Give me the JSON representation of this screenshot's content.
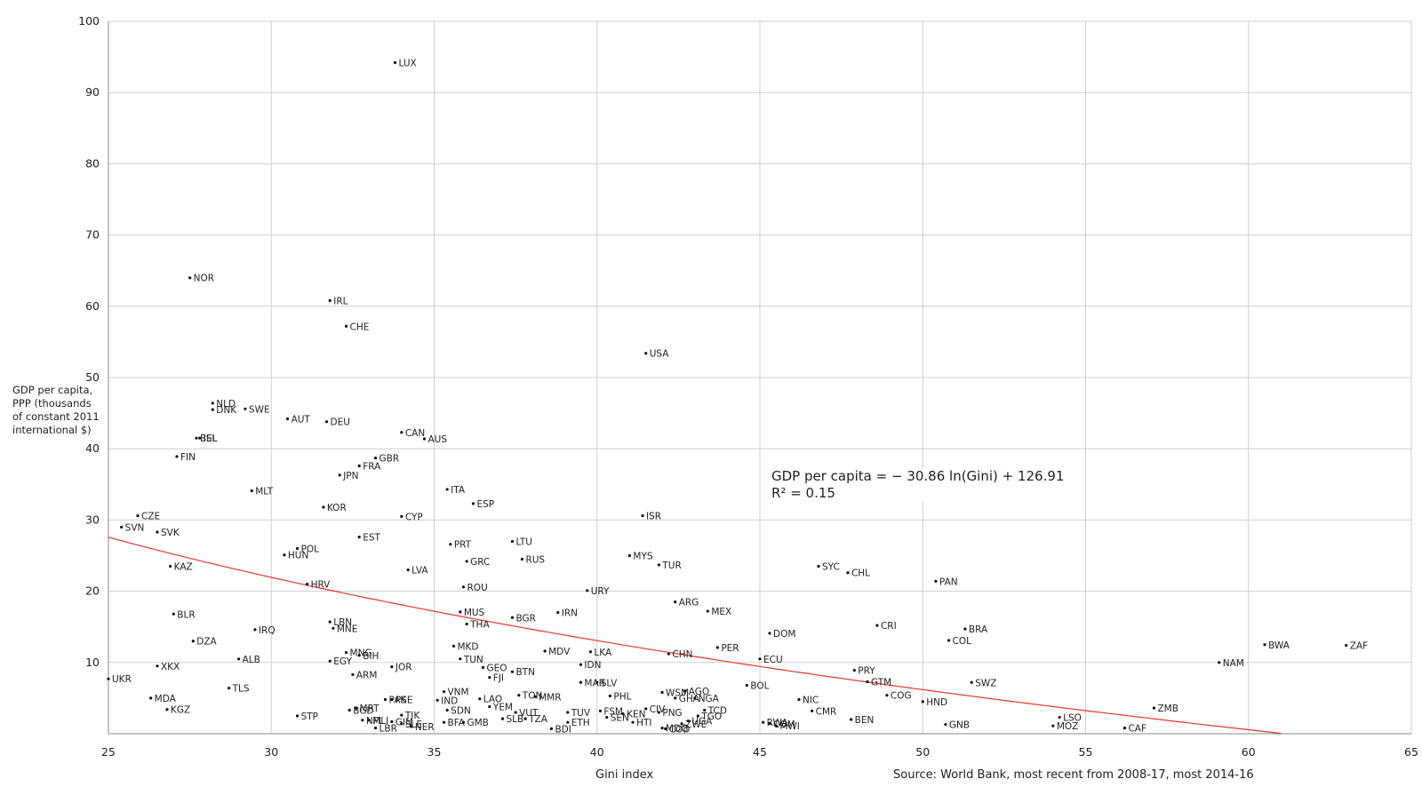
{
  "chart_data": {
    "type": "scatter",
    "xlabel": "Gini index",
    "ylabel": "GDP per capita,\nPPP (thousands\nof constant 2011\ninternational $)",
    "source": "Source: World Bank, most recent from 2008-17, most 2014-16",
    "equation": "GDP per capita = − 30.86 ln(Gini) + 126.91",
    "r2": "R² = 0.15",
    "xlim": [
      25,
      65
    ],
    "ylim": [
      0,
      100
    ],
    "xticks": [
      25,
      30,
      35,
      40,
      45,
      50,
      55,
      60,
      65
    ],
    "yticks": [
      10,
      20,
      30,
      40,
      50,
      60,
      70,
      80,
      90,
      100
    ],
    "grid": true,
    "trend_color": "#e8352e",
    "trend": {
      "a": -30.86,
      "b": 126.91
    },
    "points": [
      {
        "label": "LUX",
        "x": 33.8,
        "y": 94.2
      },
      {
        "label": "NOR",
        "x": 27.5,
        "y": 64.0
      },
      {
        "label": "IRL",
        "x": 31.8,
        "y": 60.8
      },
      {
        "label": "CHE",
        "x": 32.3,
        "y": 57.2
      },
      {
        "label": "USA",
        "x": 41.5,
        "y": 53.4
      },
      {
        "label": "NLD",
        "x": 28.2,
        "y": 46.4
      },
      {
        "label": "DNK",
        "x": 28.2,
        "y": 45.5
      },
      {
        "label": "SWE",
        "x": 29.2,
        "y": 45.6
      },
      {
        "label": "AUT",
        "x": 30.5,
        "y": 44.2
      },
      {
        "label": "DEU",
        "x": 31.7,
        "y": 43.8
      },
      {
        "label": "CAN",
        "x": 34.0,
        "y": 42.3
      },
      {
        "label": "AUS",
        "x": 34.7,
        "y": 41.4
      },
      {
        "label": "BEL",
        "x": 27.7,
        "y": 41.5
      },
      {
        "label": "ISL",
        "x": 27.8,
        "y": 41.5
      },
      {
        "label": "FIN",
        "x": 27.1,
        "y": 38.9
      },
      {
        "label": "GBR",
        "x": 33.2,
        "y": 38.7
      },
      {
        "label": "FRA",
        "x": 32.7,
        "y": 37.6
      },
      {
        "label": "JPN",
        "x": 32.1,
        "y": 36.3
      },
      {
        "label": "MLT",
        "x": 29.4,
        "y": 34.1
      },
      {
        "label": "ITA",
        "x": 35.4,
        "y": 34.3
      },
      {
        "label": "ESP",
        "x": 36.2,
        "y": 32.3
      },
      {
        "label": "KOR",
        "x": 31.6,
        "y": 31.8
      },
      {
        "label": "CZE",
        "x": 25.9,
        "y": 30.6
      },
      {
        "label": "CYP",
        "x": 34.0,
        "y": 30.5
      },
      {
        "label": "ISR",
        "x": 41.4,
        "y": 30.6
      },
      {
        "label": "SVN",
        "x": 25.4,
        "y": 29.0
      },
      {
        "label": "SVK",
        "x": 26.5,
        "y": 28.3
      },
      {
        "label": "EST",
        "x": 32.7,
        "y": 27.6
      },
      {
        "label": "LTU",
        "x": 37.4,
        "y": 27.0
      },
      {
        "label": "PRT",
        "x": 35.5,
        "y": 26.6
      },
      {
        "label": "POL",
        "x": 30.8,
        "y": 26.0
      },
      {
        "label": "HUN",
        "x": 30.4,
        "y": 25.1
      },
      {
        "label": "MYS",
        "x": 41.0,
        "y": 25.0
      },
      {
        "label": "RUS",
        "x": 37.7,
        "y": 24.5
      },
      {
        "label": "GRC",
        "x": 36.0,
        "y": 24.2
      },
      {
        "label": "TUR",
        "x": 41.9,
        "y": 23.7
      },
      {
        "label": "SYC",
        "x": 46.8,
        "y": 23.5
      },
      {
        "label": "KAZ",
        "x": 26.9,
        "y": 23.5
      },
      {
        "label": "LVA",
        "x": 34.2,
        "y": 23.0
      },
      {
        "label": "CHL",
        "x": 47.7,
        "y": 22.6
      },
      {
        "label": "PAN",
        "x": 50.4,
        "y": 21.4
      },
      {
        "label": "HRV",
        "x": 31.1,
        "y": 21.0
      },
      {
        "label": "ROU",
        "x": 35.9,
        "y": 20.6
      },
      {
        "label": "URY",
        "x": 39.7,
        "y": 20.1
      },
      {
        "label": "ARG",
        "x": 42.4,
        "y": 18.5
      },
      {
        "label": "MEX",
        "x": 43.4,
        "y": 17.2
      },
      {
        "label": "IRN",
        "x": 38.8,
        "y": 17.0
      },
      {
        "label": "MUS",
        "x": 35.8,
        "y": 17.1
      },
      {
        "label": "BLR",
        "x": 27.0,
        "y": 16.8
      },
      {
        "label": "BGR",
        "x": 37.4,
        "y": 16.3
      },
      {
        "label": "LBN",
        "x": 31.8,
        "y": 15.7
      },
      {
        "label": "THA",
        "x": 36.0,
        "y": 15.4
      },
      {
        "label": "CRI",
        "x": 48.6,
        "y": 15.2
      },
      {
        "label": "MNE",
        "x": 31.9,
        "y": 14.8
      },
      {
        "label": "BRA",
        "x": 51.3,
        "y": 14.7
      },
      {
        "label": "IRQ",
        "x": 29.5,
        "y": 14.6
      },
      {
        "label": "DOM",
        "x": 45.3,
        "y": 14.1
      },
      {
        "label": "DZA",
        "x": 27.6,
        "y": 13.0
      },
      {
        "label": "COL",
        "x": 50.8,
        "y": 13.1
      },
      {
        "label": "BWA",
        "x": 60.5,
        "y": 12.5
      },
      {
        "label": "ZAF",
        "x": 63.0,
        "y": 12.4
      },
      {
        "label": "MKD",
        "x": 35.6,
        "y": 12.3
      },
      {
        "label": "PER",
        "x": 43.7,
        "y": 12.1
      },
      {
        "label": "MDV",
        "x": 38.4,
        "y": 11.6
      },
      {
        "label": "LKA",
        "x": 39.8,
        "y": 11.5
      },
      {
        "label": "MNG",
        "x": 32.3,
        "y": 11.4
      },
      {
        "label": "CHN",
        "x": 42.2,
        "y": 11.2
      },
      {
        "label": "BIH",
        "x": 32.7,
        "y": 11.0
      },
      {
        "label": "TUN",
        "x": 35.8,
        "y": 10.5
      },
      {
        "label": "ECU",
        "x": 45.0,
        "y": 10.5
      },
      {
        "label": "ALB",
        "x": 29.0,
        "y": 10.5
      },
      {
        "label": "EGY",
        "x": 31.8,
        "y": 10.2
      },
      {
        "label": "NAM",
        "x": 59.1,
        "y": 10.0
      },
      {
        "label": "IDN",
        "x": 39.5,
        "y": 9.7
      },
      {
        "label": "XKX",
        "x": 26.5,
        "y": 9.5
      },
      {
        "label": "JOR",
        "x": 33.7,
        "y": 9.4
      },
      {
        "label": "GEO",
        "x": 36.5,
        "y": 9.3
      },
      {
        "label": "PRY",
        "x": 47.9,
        "y": 8.9
      },
      {
        "label": "BTN",
        "x": 37.4,
        "y": 8.7
      },
      {
        "label": "ARM",
        "x": 32.5,
        "y": 8.3
      },
      {
        "label": "FJI",
        "x": 36.7,
        "y": 7.9
      },
      {
        "label": "UKR",
        "x": 25.0,
        "y": 7.7
      },
      {
        "label": "MAR",
        "x": 39.5,
        "y": 7.2
      },
      {
        "label": "SLV",
        "x": 40.0,
        "y": 7.2
      },
      {
        "label": "GTM",
        "x": 48.3,
        "y": 7.3
      },
      {
        "label": "SWZ",
        "x": 51.5,
        "y": 7.2
      },
      {
        "label": "BOL",
        "x": 44.6,
        "y": 6.8
      },
      {
        "label": "TLS",
        "x": 28.7,
        "y": 6.4
      },
      {
        "label": "AGO",
        "x": 42.7,
        "y": 6.0
      },
      {
        "label": "WSM",
        "x": 42.0,
        "y": 5.8
      },
      {
        "label": "VNM",
        "x": 35.3,
        "y": 5.9
      },
      {
        "label": "TON",
        "x": 37.6,
        "y": 5.4
      },
      {
        "label": "PHL",
        "x": 40.4,
        "y": 5.3
      },
      {
        "label": "COG",
        "x": 48.9,
        "y": 5.4
      },
      {
        "label": "MMR",
        "x": 38.1,
        "y": 5.2
      },
      {
        "label": "GHA",
        "x": 42.4,
        "y": 5.0
      },
      {
        "label": "NGA",
        "x": 43.0,
        "y": 5.0
      },
      {
        "label": "MDA",
        "x": 26.3,
        "y": 5.0
      },
      {
        "label": "LAO",
        "x": 36.4,
        "y": 4.9
      },
      {
        "label": "PAK",
        "x": 33.5,
        "y": 4.8
      },
      {
        "label": "PSE",
        "x": 33.7,
        "y": 4.8
      },
      {
        "label": "NIC",
        "x": 46.2,
        "y": 4.8
      },
      {
        "label": "IND",
        "x": 35.1,
        "y": 4.7
      },
      {
        "label": "HND",
        "x": 50.0,
        "y": 4.5
      },
      {
        "label": "CIV",
        "x": 41.5,
        "y": 3.5
      },
      {
        "label": "YEM",
        "x": 36.7,
        "y": 3.8
      },
      {
        "label": "MRT",
        "x": 32.6,
        "y": 3.6
      },
      {
        "label": "ZMB",
        "x": 57.1,
        "y": 3.6
      },
      {
        "label": "KGZ",
        "x": 26.8,
        "y": 3.4
      },
      {
        "label": "SDN",
        "x": 35.4,
        "y": 3.3
      },
      {
        "label": "BGD",
        "x": 32.4,
        "y": 3.3
      },
      {
        "label": "CMR",
        "x": 46.6,
        "y": 3.2
      },
      {
        "label": "FSM",
        "x": 40.1,
        "y": 3.2
      },
      {
        "label": "PNG",
        "x": 41.9,
        "y": 3.0
      },
      {
        "label": "TCD",
        "x": 43.3,
        "y": 3.3
      },
      {
        "label": "VUT",
        "x": 37.5,
        "y": 3.0
      },
      {
        "label": "TUV",
        "x": 39.1,
        "y": 3.0
      },
      {
        "label": "KEN",
        "x": 40.8,
        "y": 2.8
      },
      {
        "label": "TJK",
        "x": 34.0,
        "y": 2.6
      },
      {
        "label": "STP",
        "x": 30.8,
        "y": 2.5
      },
      {
        "label": "TGO",
        "x": 43.1,
        "y": 2.5
      },
      {
        "label": "LSO",
        "x": 54.2,
        "y": 2.3
      },
      {
        "label": "SLB",
        "x": 37.1,
        "y": 2.1
      },
      {
        "label": "TZA",
        "x": 37.8,
        "y": 2.1
      },
      {
        "label": "UGA",
        "x": 42.8,
        "y": 1.8
      },
      {
        "label": "BEN",
        "x": 47.8,
        "y": 2.0
      },
      {
        "label": "MLI",
        "x": 33.0,
        "y": 1.9
      },
      {
        "label": "NPL",
        "x": 32.8,
        "y": 1.9
      },
      {
        "label": "GIN",
        "x": 33.7,
        "y": 1.7
      },
      {
        "label": "BFA",
        "x": 35.3,
        "y": 1.6
      },
      {
        "label": "GMB",
        "x": 35.9,
        "y": 1.6
      },
      {
        "label": "ETH",
        "x": 39.1,
        "y": 1.6
      },
      {
        "label": "HTI",
        "x": 41.1,
        "y": 1.6
      },
      {
        "label": "ZWE",
        "x": 42.6,
        "y": 1.4
      },
      {
        "label": "RWA",
        "x": 45.1,
        "y": 1.6
      },
      {
        "label": "COM",
        "x": 45.3,
        "y": 1.4
      },
      {
        "label": "GNB",
        "x": 50.7,
        "y": 1.3
      },
      {
        "label": "NER",
        "x": 34.3,
        "y": 1.0
      },
      {
        "label": "LBR",
        "x": 33.2,
        "y": 0.8
      },
      {
        "label": "MOZ",
        "x": 54.0,
        "y": 1.1
      },
      {
        "label": "CAF",
        "x": 56.2,
        "y": 0.8
      },
      {
        "label": "BDI",
        "x": 38.6,
        "y": 0.7
      },
      {
        "label": "SEN",
        "x": 40.3,
        "y": 2.3
      },
      {
        "label": "MDG",
        "x": 42.0,
        "y": 0.8
      },
      {
        "label": "SLE",
        "x": 34.0,
        "y": 1.4
      },
      {
        "label": "COD",
        "x": 42.1,
        "y": 0.7
      },
      {
        "label": "MWI",
        "x": 45.5,
        "y": 1.1
      }
    ],
    "label_offsets": {}
  }
}
